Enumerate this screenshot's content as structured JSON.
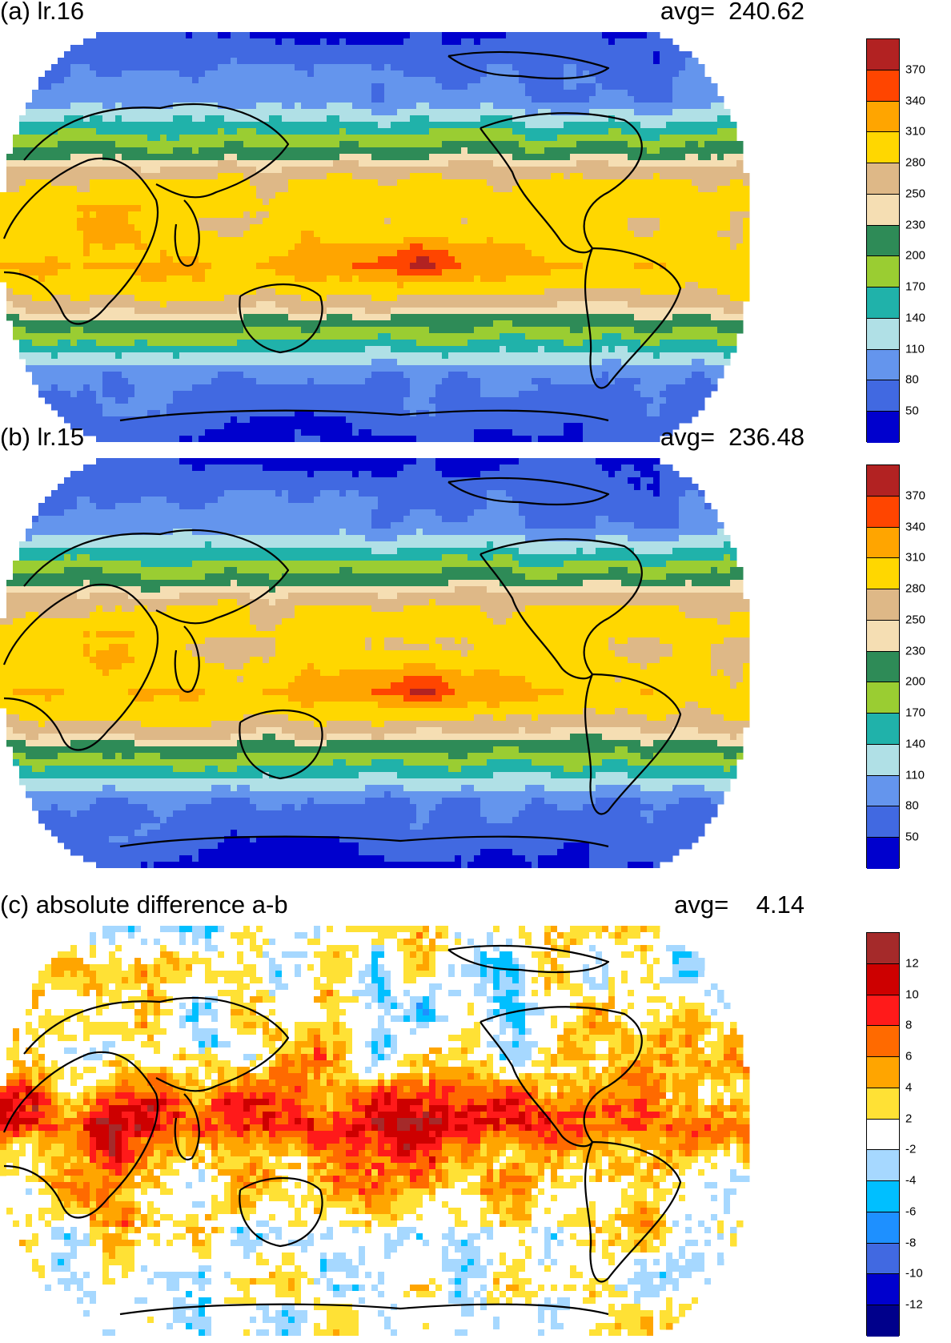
{
  "panels": [
    {
      "id": "a",
      "title": "(a) lr.16",
      "avg_label": "avg=  240.62",
      "field": "absolute",
      "colorbar": {
        "labels": [
          "370",
          "340",
          "310",
          "280",
          "250",
          "230",
          "200",
          "170",
          "140",
          "110",
          "80",
          "50"
        ],
        "colors": [
          "#b22222",
          "#ff4500",
          "#ffa500",
          "#ffd700",
          "#deb887",
          "#f5deb3",
          "#2e8b57",
          "#9acd32",
          "#20b2aa",
          "#b0e0e6",
          "#6495ed",
          "#4169e1",
          "#0000cd"
        ]
      }
    },
    {
      "id": "b",
      "title": "(b) lr.15",
      "avg_label": "avg=  236.48",
      "field": "absolute",
      "colorbar": {
        "labels": [
          "370",
          "340",
          "310",
          "280",
          "250",
          "230",
          "200",
          "170",
          "140",
          "110",
          "80",
          "50"
        ],
        "colors": [
          "#b22222",
          "#ff4500",
          "#ffa500",
          "#ffd700",
          "#deb887",
          "#f5deb3",
          "#2e8b57",
          "#9acd32",
          "#20b2aa",
          "#b0e0e6",
          "#6495ed",
          "#4169e1",
          "#0000cd"
        ]
      }
    },
    {
      "id": "c",
      "title": "(c) absolute difference a-b",
      "avg_label": "avg=    4.14",
      "field": "difference",
      "colorbar": {
        "labels": [
          "12",
          "10",
          "8",
          "6",
          "4",
          "2",
          "-2",
          "-4",
          "-6",
          "-8",
          "-10",
          "-12"
        ],
        "colors": [
          "#a52a2a",
          "#cd0000",
          "#ff1a1a",
          "#ff6a00",
          "#ffa500",
          "#ffe135",
          "#ffffff",
          "#a6d8ff",
          "#00bfff",
          "#1e90ff",
          "#4169e1",
          "#0000cd",
          "#00008b"
        ]
      }
    }
  ]
}
